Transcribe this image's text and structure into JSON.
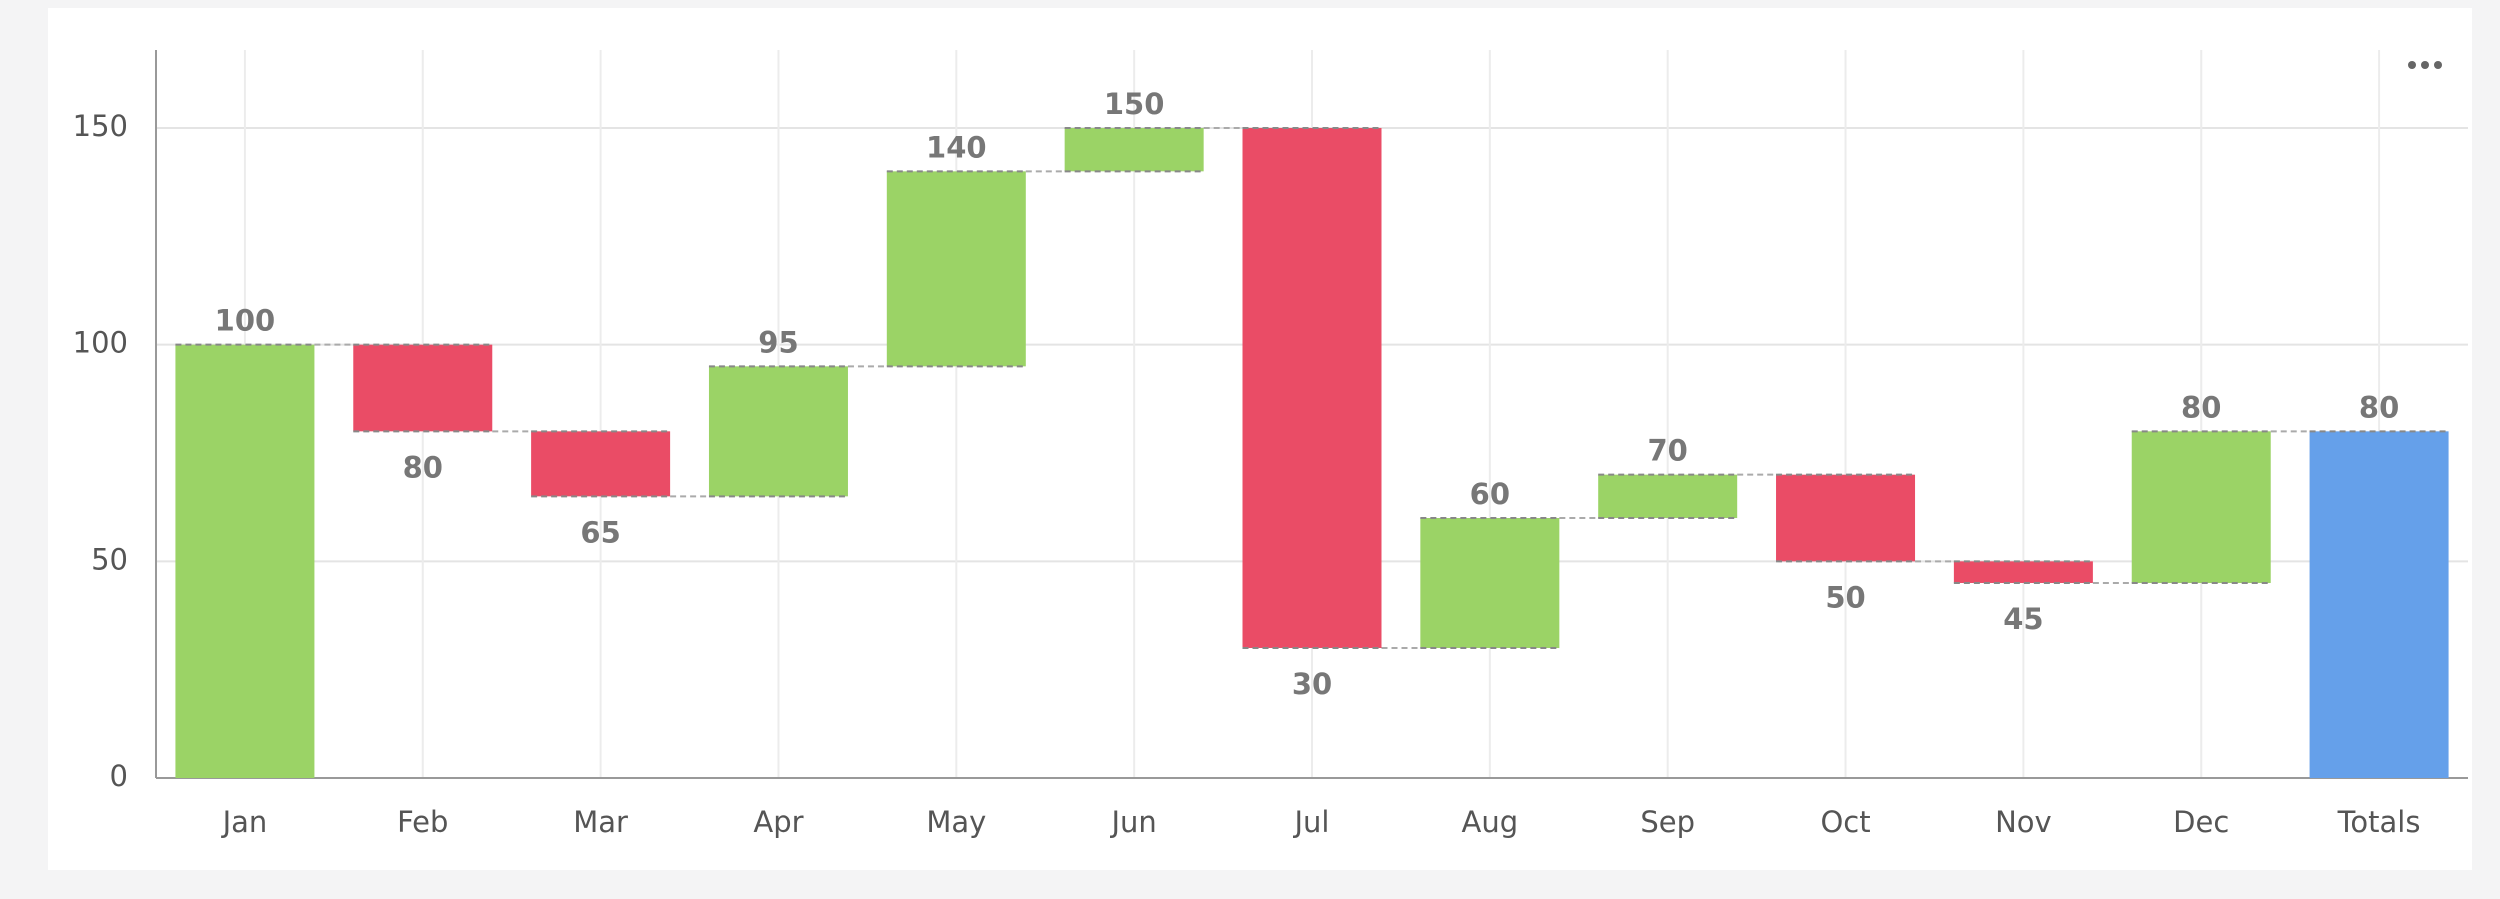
{
  "chart_data": {
    "type": "waterfall",
    "categories": [
      "Jan",
      "Feb",
      "Mar",
      "Apr",
      "May",
      "Jun",
      "Jul",
      "Aug",
      "Sep",
      "Oct",
      "Nov",
      "Dec",
      "Totals"
    ],
    "values": [
      100,
      80,
      65,
      95,
      140,
      150,
      30,
      60,
      70,
      50,
      45,
      80,
      80
    ],
    "is_total": [
      false,
      false,
      false,
      false,
      false,
      false,
      false,
      false,
      false,
      false,
      false,
      false,
      true
    ],
    "colors": {
      "increase": "#9bd366",
      "decrease": "#ea4c66",
      "total": "#65a0ea"
    },
    "ylim": [
      0,
      168
    ],
    "yticks": [
      0,
      50,
      100,
      150
    ],
    "grid": true
  }
}
